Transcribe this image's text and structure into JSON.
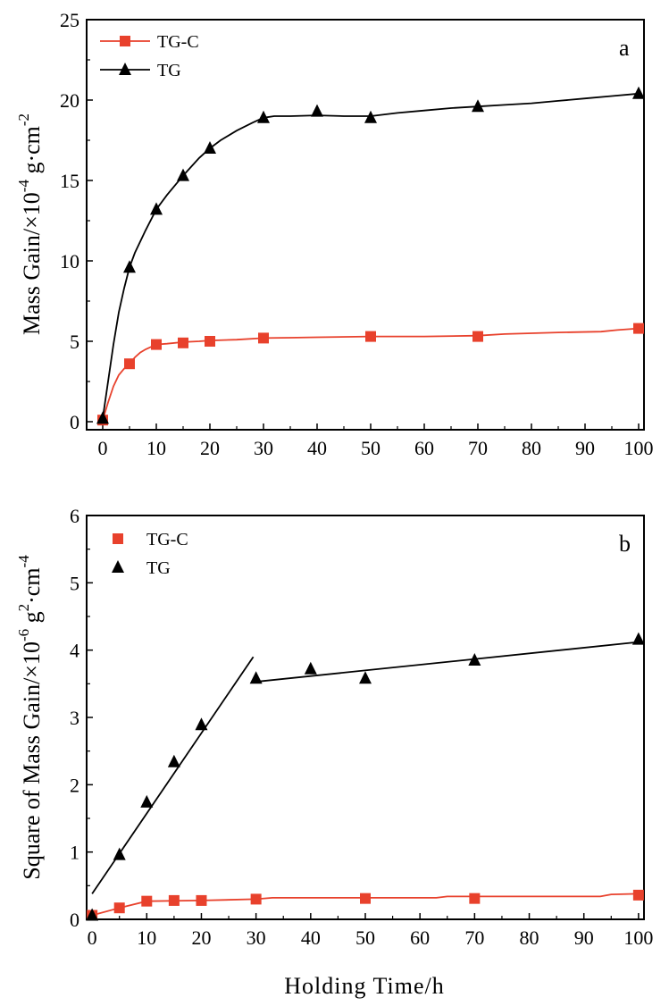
{
  "chart_data": [
    {
      "panel": "a",
      "type": "line",
      "xlabel": "",
      "ylabel": "Mass Gain/×10",
      "ylabel_exp1": "-4",
      "ylabel_mid": " g·cm",
      "ylabel_exp2": "-2",
      "xlim": [
        -3,
        101
      ],
      "ylim": [
        -0.5,
        25
      ],
      "xticks": [
        0,
        10,
        20,
        30,
        40,
        50,
        60,
        70,
        80,
        90,
        100
      ],
      "yticks": [
        0,
        5,
        10,
        15,
        20,
        25
      ],
      "legend_position": "top-left",
      "grid": false,
      "series": [
        {
          "name": "TG-C",
          "color": "#e8412c",
          "marker": "square",
          "x": [
            0,
            5,
            10,
            15,
            20,
            30,
            50,
            70,
            100
          ],
          "y": [
            0.1,
            3.6,
            4.8,
            4.9,
            5.0,
            5.2,
            5.3,
            5.3,
            5.8
          ],
          "fit": [
            [
              0,
              0.1
            ],
            [
              1,
              1.2
            ],
            [
              2,
              2.2
            ],
            [
              3,
              2.9
            ],
            [
              4,
              3.3
            ],
            [
              5,
              3.6
            ],
            [
              6,
              4.0
            ],
            [
              7,
              4.3
            ],
            [
              8,
              4.5
            ],
            [
              10,
              4.8
            ],
            [
              12,
              4.85
            ],
            [
              15,
              4.95
            ],
            [
              18,
              5.0
            ],
            [
              20,
              5.05
            ],
            [
              25,
              5.1
            ],
            [
              30,
              5.2
            ],
            [
              35,
              5.22
            ],
            [
              40,
              5.25
            ],
            [
              50,
              5.3
            ],
            [
              60,
              5.3
            ],
            [
              70,
              5.35
            ],
            [
              75,
              5.45
            ],
            [
              85,
              5.55
            ],
            [
              93,
              5.6
            ],
            [
              96,
              5.7
            ],
            [
              100,
              5.8
            ]
          ]
        },
        {
          "name": "TG",
          "color": "#000000",
          "marker": "triangle",
          "x": [
            0,
            5,
            10,
            15,
            20,
            30,
            40,
            50,
            70,
            100
          ],
          "y": [
            0.2,
            9.6,
            13.2,
            15.3,
            17.0,
            18.9,
            19.3,
            18.9,
            19.6,
            20.4
          ],
          "fit": [
            [
              0,
              0.2
            ],
            [
              1,
              2.5
            ],
            [
              2,
              4.8
            ],
            [
              3,
              6.8
            ],
            [
              4,
              8.3
            ],
            [
              5,
              9.6
            ],
            [
              6,
              10.5
            ],
            [
              8,
              11.9
            ],
            [
              10,
              13.2
            ],
            [
              12,
              14.1
            ],
            [
              15,
              15.3
            ],
            [
              18,
              16.4
            ],
            [
              20,
              17.0
            ],
            [
              22,
              17.5
            ],
            [
              25,
              18.1
            ],
            [
              28,
              18.6
            ],
            [
              30,
              18.9
            ],
            [
              32,
              19.0
            ],
            [
              35,
              19.0
            ],
            [
              40,
              19.05
            ],
            [
              45,
              19.0
            ],
            [
              50,
              19.0
            ],
            [
              55,
              19.2
            ],
            [
              60,
              19.35
            ],
            [
              65,
              19.5
            ],
            [
              70,
              19.6
            ],
            [
              75,
              19.7
            ],
            [
              80,
              19.8
            ],
            [
              85,
              19.95
            ],
            [
              90,
              20.1
            ],
            [
              95,
              20.25
            ],
            [
              100,
              20.4
            ]
          ]
        }
      ]
    },
    {
      "panel": "b",
      "type": "scatter",
      "xlabel": "Holding Time/h",
      "ylabel": "Square of Mass Gain/×10",
      "ylabel_exp1": "-6",
      "ylabel_mid": " g",
      "ylabel_exp2": "2",
      "ylabel_mid2": "·cm",
      "ylabel_exp3": "-4",
      "xlim": [
        -1,
        101
      ],
      "ylim": [
        0,
        6
      ],
      "xticks": [
        0,
        10,
        20,
        30,
        40,
        50,
        60,
        70,
        80,
        90,
        100
      ],
      "yticks": [
        0,
        1,
        2,
        3,
        4,
        5,
        6
      ],
      "legend_position": "top-left",
      "grid": false,
      "series": [
        {
          "name": "TG-C",
          "color": "#e8412c",
          "marker": "square",
          "x": [
            0,
            5,
            10,
            15,
            20,
            30,
            50,
            70,
            100
          ],
          "y": [
            0.06,
            0.17,
            0.27,
            0.28,
            0.28,
            0.3,
            0.31,
            0.31,
            0.36
          ],
          "fit": [
            [
              0,
              0.06
            ],
            [
              5,
              0.17
            ],
            [
              10,
              0.27
            ],
            [
              20,
              0.28
            ],
            [
              30,
              0.3
            ],
            [
              33,
              0.32
            ],
            [
              50,
              0.32
            ],
            [
              63,
              0.32
            ],
            [
              65,
              0.34
            ],
            [
              93,
              0.34
            ],
            [
              95,
              0.37
            ],
            [
              100,
              0.38
            ]
          ]
        },
        {
          "name": "TG",
          "color": "#000000",
          "marker": "triangle",
          "x": [
            0,
            5,
            10,
            15,
            20,
            30,
            40,
            50,
            70,
            100
          ],
          "y": [
            0.06,
            0.96,
            1.74,
            2.34,
            2.89,
            3.58,
            3.72,
            3.58,
            3.85,
            4.16
          ],
          "fit_segments": [
            [
              [
                0,
                0.38
              ],
              [
                29.5,
                3.9
              ]
            ],
            [
              [
                30,
                3.53
              ],
              [
                100,
                4.12
              ]
            ]
          ]
        }
      ]
    }
  ]
}
